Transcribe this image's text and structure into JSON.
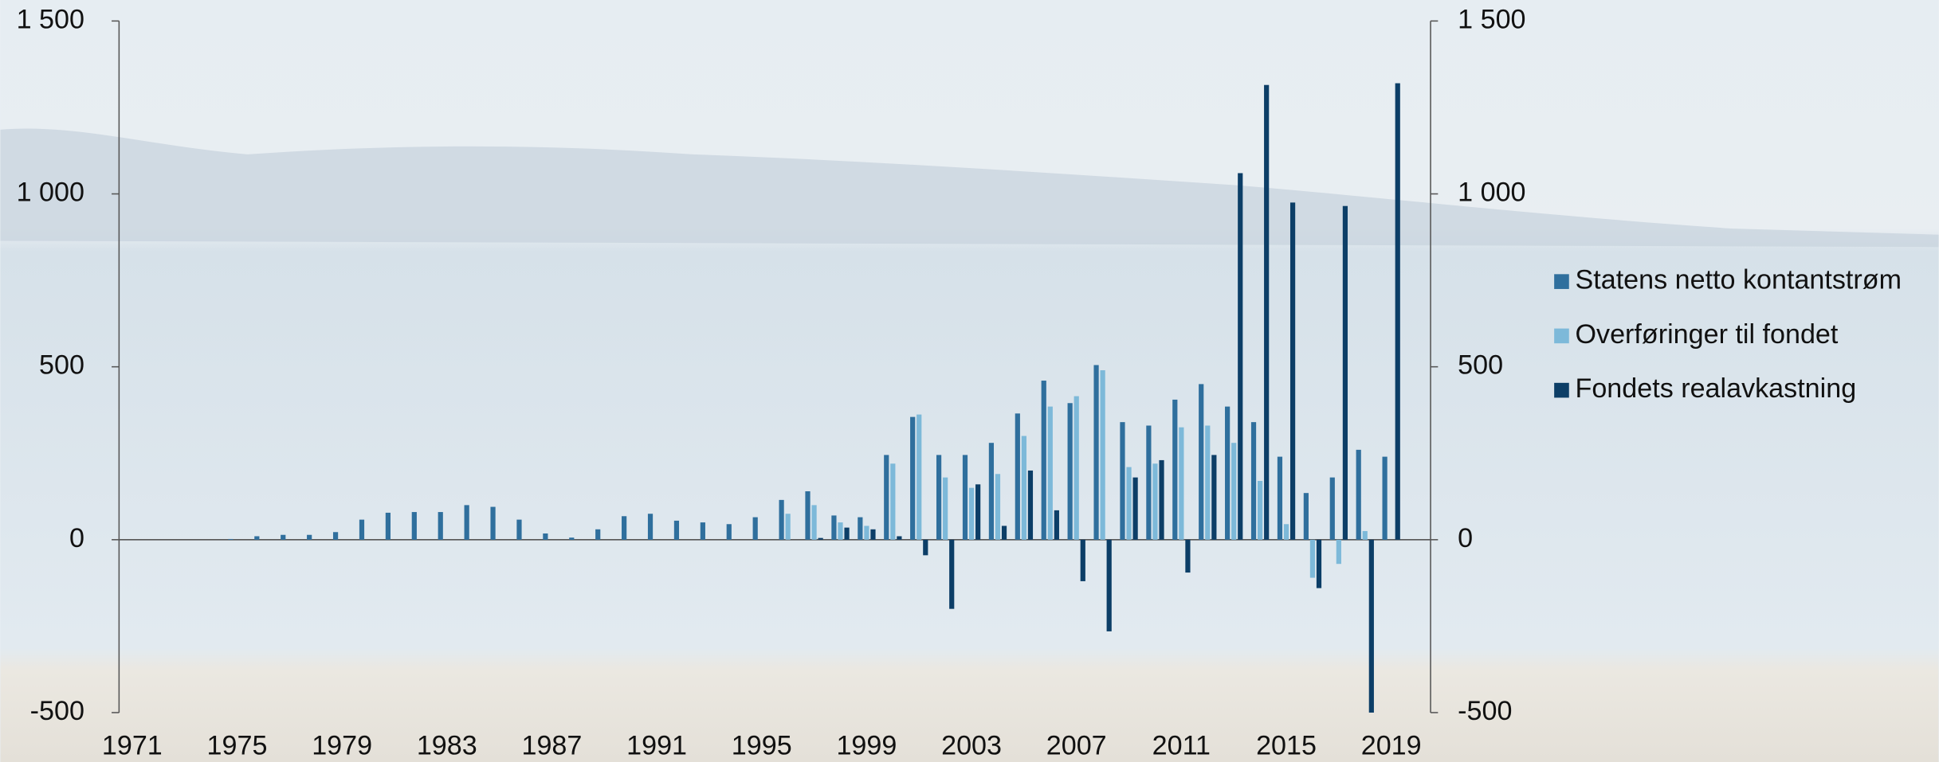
{
  "chart_data": {
    "type": "bar",
    "x": [
      1971,
      1972,
      1973,
      1974,
      1975,
      1976,
      1977,
      1978,
      1979,
      1980,
      1981,
      1982,
      1983,
      1984,
      1985,
      1986,
      1987,
      1988,
      1989,
      1990,
      1991,
      1992,
      1993,
      1994,
      1995,
      1996,
      1997,
      1998,
      1999,
      2000,
      2001,
      2002,
      2003,
      2004,
      2005,
      2006,
      2007,
      2008,
      2009,
      2010,
      2011,
      2012,
      2013,
      2014,
      2015,
      2016,
      2017,
      2018,
      2019
    ],
    "series": [
      {
        "name": "Statens netto kontantstrøm",
        "color": "#2f6f9d",
        "values": [
          0,
          0,
          0,
          0,
          2,
          10,
          14,
          14,
          22,
          58,
          78,
          80,
          80,
          100,
          95,
          58,
          18,
          6,
          30,
          68,
          75,
          55,
          50,
          45,
          65,
          115,
          140,
          70,
          65,
          245,
          355,
          245,
          245,
          280,
          365,
          460,
          395,
          505,
          340,
          330,
          405,
          450,
          385,
          340,
          240,
          135,
          180,
          260,
          240
        ]
      },
      {
        "name": "Overføringer til fondet",
        "color": "#7db9d9",
        "values": [
          0,
          0,
          0,
          0,
          0,
          0,
          0,
          0,
          0,
          0,
          0,
          0,
          0,
          0,
          0,
          0,
          0,
          0,
          0,
          0,
          0,
          0,
          0,
          0,
          0,
          75,
          100,
          50,
          40,
          220,
          362,
          180,
          150,
          190,
          300,
          385,
          415,
          490,
          210,
          220,
          325,
          330,
          280,
          170,
          45,
          -110,
          -70,
          25,
          0
        ]
      },
      {
        "name": "Fondets realavkastning",
        "color": "#0c3e67",
        "values": [
          0,
          0,
          0,
          0,
          0,
          0,
          0,
          0,
          0,
          0,
          0,
          0,
          0,
          0,
          0,
          0,
          0,
          0,
          0,
          0,
          0,
          0,
          0,
          0,
          0,
          0,
          5,
          35,
          30,
          10,
          -45,
          -200,
          160,
          40,
          200,
          85,
          -120,
          -265,
          180,
          230,
          -95,
          245,
          1060,
          1315,
          975,
          -140,
          965,
          -500,
          1320
        ]
      }
    ],
    "xlim": [
      1970.5,
      2020.5
    ],
    "xticks": [
      1971,
      1975,
      1979,
      1983,
      1987,
      1991,
      1995,
      1999,
      2003,
      2007,
      2011,
      2015,
      2019
    ],
    "ylim": [
      -500,
      1500
    ],
    "yticks": [
      {
        "value": -500,
        "label": "-500"
      },
      0,
      500,
      {
        "value": 1000,
        "label": "1 000"
      },
      {
        "value": 1500,
        "label": "1 500"
      }
    ],
    "y2lim": [
      -500,
      1500
    ],
    "legend": "right"
  }
}
